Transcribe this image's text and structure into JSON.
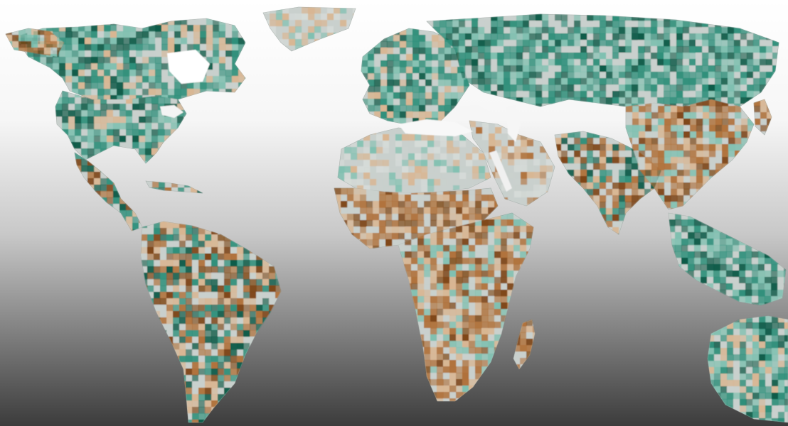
{
  "map": {
    "kind": "world-choropleth",
    "projection": "equirectangular",
    "background_gradient": [
      "#ffffff",
      "#ededed",
      "#b9b9b9",
      "#6e6e6e",
      "#3a3a3a"
    ],
    "colors": {
      "wetter_dark": "#0d5b48",
      "wetter": "#2e8f7a",
      "wetter_light": "#7fc0b0",
      "neutral": "#c9d0cd",
      "drier_light": "#d9b692",
      "drier": "#b0713a",
      "drier_dark": "#7e4514",
      "coastline": "#9aa39f"
    },
    "regions": [
      {
        "id": "canada",
        "trend": "wetter-mixed"
      },
      {
        "id": "alaska",
        "trend": "drier-mixed"
      },
      {
        "id": "greenland",
        "trend": "neutral"
      },
      {
        "id": "usa",
        "trend": "wetter-mixed"
      },
      {
        "id": "mexico-central-america",
        "trend": "mixed"
      },
      {
        "id": "caribbean",
        "trend": "mixed"
      },
      {
        "id": "south-america",
        "trend": "mixed"
      },
      {
        "id": "europe",
        "trend": "wetter-mixed"
      },
      {
        "id": "russia-north-asia",
        "trend": "wetter"
      },
      {
        "id": "middle-east",
        "trend": "neutral-drier"
      },
      {
        "id": "sahara",
        "trend": "neutral"
      },
      {
        "id": "sahel-west-africa",
        "trend": "drier"
      },
      {
        "id": "central-southern-africa",
        "trend": "drier-mixed"
      },
      {
        "id": "madagascar",
        "trend": "drier"
      },
      {
        "id": "south-asia",
        "trend": "mixed"
      },
      {
        "id": "east-asia",
        "trend": "drier-mixed"
      },
      {
        "id": "southeast-asia",
        "trend": "wetter"
      },
      {
        "id": "australia",
        "trend": "wetter-mixed"
      }
    ]
  }
}
